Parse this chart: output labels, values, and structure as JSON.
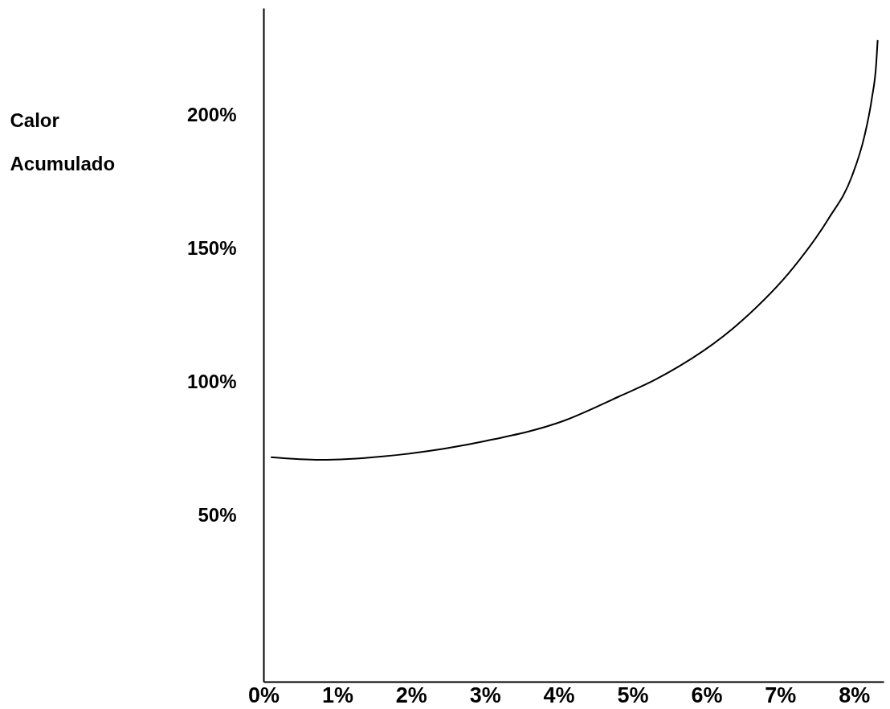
{
  "chart_data": {
    "type": "line",
    "ylabel": "Calor Acumulado",
    "x": [
      0.1,
      0.77,
      1.62,
      3.0,
      4.06,
      4.81,
      5.31,
      6.48,
      7.18,
      7.65,
      7.97,
      8.14,
      8.24,
      8.3,
      8.32
    ],
    "series": [
      {
        "color": "#000000",
        "values": [
          72,
          71,
          72.3,
          78,
          85.5,
          94.6,
          101,
          123,
          143,
          161,
          177,
          192,
          206,
          219,
          228
        ]
      }
    ],
    "xlim": [
      0,
      8.4
    ],
    "xticks": [
      {
        "value": 0,
        "label": "0%"
      },
      {
        "value": 1,
        "label": "1%"
      },
      {
        "value": 2,
        "label": "2%"
      },
      {
        "value": 3,
        "label": "3%"
      },
      {
        "value": 4,
        "label": "4%"
      },
      {
        "value": 5,
        "label": "5%"
      },
      {
        "value": 6,
        "label": "6%"
      },
      {
        "value": 7,
        "label": "7%"
      },
      {
        "value": 8,
        "label": "8%"
      }
    ],
    "ylim": [
      -12,
      240
    ],
    "yticks": [
      {
        "value": 50,
        "label": "50%"
      },
      {
        "value": 100,
        "label": "100%"
      },
      {
        "value": 150,
        "label": "150%"
      },
      {
        "value": 200,
        "label": "200%"
      }
    ],
    "grid": false,
    "marker": "none",
    "line_style": "solid"
  }
}
